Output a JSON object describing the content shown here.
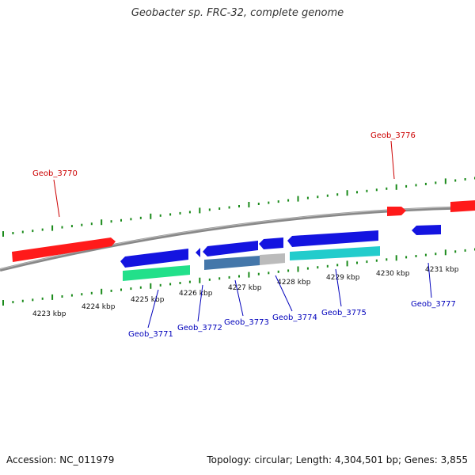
{
  "title": "Geobacter sp. FRC-32, complete genome",
  "footer": {
    "accession": "Accession: NC_011979",
    "summary": "Topology: circular; Length: 4,304,501 bp; Genes: 3,855"
  },
  "colors": {
    "forward_gene": "#ff1a1a",
    "reverse_gene": "#1414e0",
    "forward_label": "#cc0000",
    "reverse_label": "#0000bb",
    "backbone": "#888888",
    "tick": "#1a8a1a",
    "rna_green": "#22e08a",
    "rna_cyan": "#22cccc",
    "rna_steel": "#4477aa",
    "rna_grey": "#bbbbbb"
  },
  "scale": {
    "unit": "kbp",
    "tick_labels": [
      "4223 kbp",
      "4224 kbp",
      "4225 kbp",
      "4226 kbp",
      "4227 kbp",
      "4228 kbp",
      "4229 kbp",
      "4230 kbp",
      "4231 kbp"
    ]
  },
  "genes": [
    {
      "locus": "Geob_3770",
      "strand": "forward"
    },
    {
      "locus": "Geob_3771",
      "strand": "reverse"
    },
    {
      "locus": "Geob_3772",
      "strand": "reverse"
    },
    {
      "locus": "Geob_3773",
      "strand": "reverse"
    },
    {
      "locus": "Geob_3774",
      "strand": "reverse"
    },
    {
      "locus": "Geob_3775",
      "strand": "reverse"
    },
    {
      "locus": "Geob_3776",
      "strand": "forward"
    },
    {
      "locus": "Geob_3777",
      "strand": "reverse"
    }
  ]
}
